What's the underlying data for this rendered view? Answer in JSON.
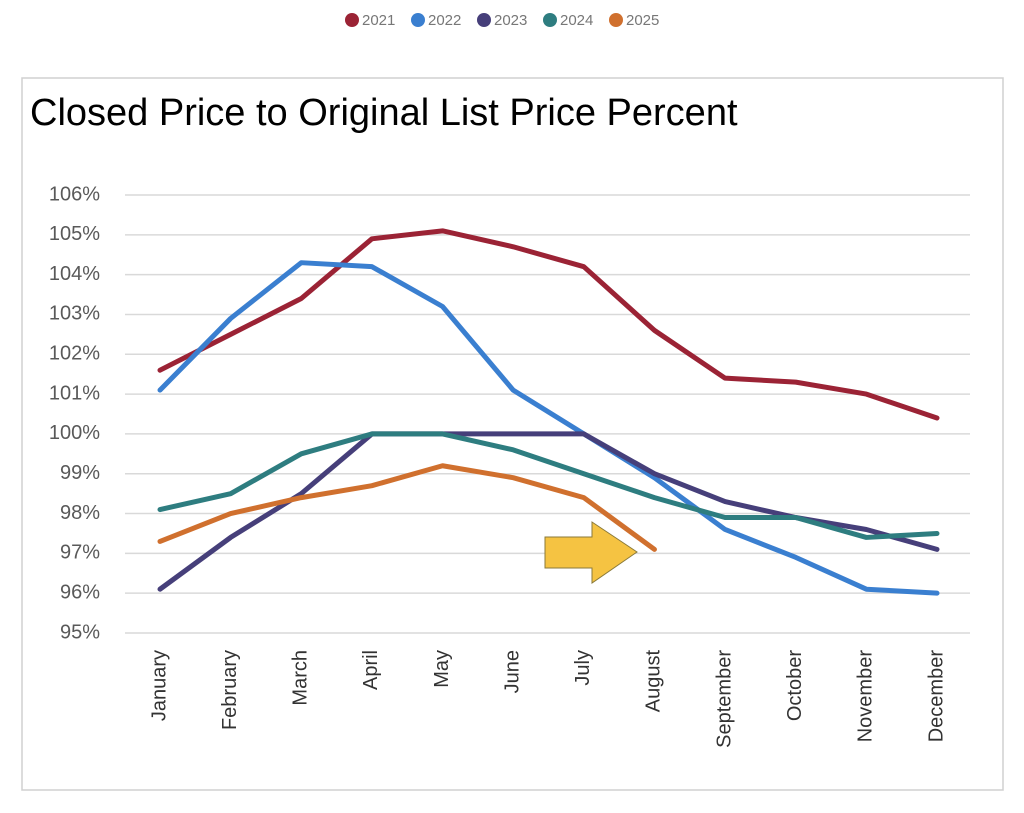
{
  "chart_data": {
    "type": "line",
    "title": "Closed Price to Original List Price Percent",
    "categories": [
      "January",
      "February",
      "March",
      "April",
      "May",
      "June",
      "July",
      "August",
      "September",
      "October",
      "November",
      "December"
    ],
    "series": [
      {
        "name": "2021",
        "color": "#9b2335",
        "values": [
          101.6,
          102.5,
          103.4,
          104.9,
          105.1,
          104.7,
          104.2,
          102.6,
          101.4,
          101.3,
          101.0,
          100.4
        ]
      },
      {
        "name": "2022",
        "color": "#3a7fd0",
        "values": [
          101.1,
          102.9,
          104.3,
          104.2,
          103.2,
          101.1,
          100.0,
          98.9,
          97.6,
          96.9,
          96.1,
          96.0
        ]
      },
      {
        "name": "2023",
        "color": "#463f7a",
        "values": [
          96.1,
          97.4,
          98.5,
          100.0,
          100.0,
          100.0,
          100.0,
          99.0,
          98.3,
          97.9,
          97.6,
          97.1
        ]
      },
      {
        "name": "2024",
        "color": "#2e7d80",
        "values": [
          98.1,
          98.5,
          99.5,
          100.0,
          100.0,
          99.6,
          99.0,
          98.4,
          97.9,
          97.9,
          97.4,
          97.5
        ]
      },
      {
        "name": "2025",
        "color": "#d0702e",
        "values": [
          97.3,
          98.0,
          98.4,
          98.7,
          99.2,
          98.9,
          98.4,
          97.1,
          null,
          null,
          null,
          null
        ]
      }
    ],
    "ylim": [
      95,
      106
    ],
    "yticks": [
      {
        "value": 95,
        "label": "95%"
      },
      {
        "value": 96,
        "label": "96%"
      },
      {
        "value": 97,
        "label": "97%"
      },
      {
        "value": 98,
        "label": "98%"
      },
      {
        "value": 99,
        "label": "99%"
      },
      {
        "value": 100,
        "label": "100%"
      },
      {
        "value": 101,
        "label": "101%"
      },
      {
        "value": 102,
        "label": "102%"
      },
      {
        "value": 103,
        "label": "103%"
      },
      {
        "value": 104,
        "label": "104%"
      },
      {
        "value": 105,
        "label": "105%"
      },
      {
        "value": 106,
        "label": "106%"
      }
    ],
    "grid": true
  }
}
